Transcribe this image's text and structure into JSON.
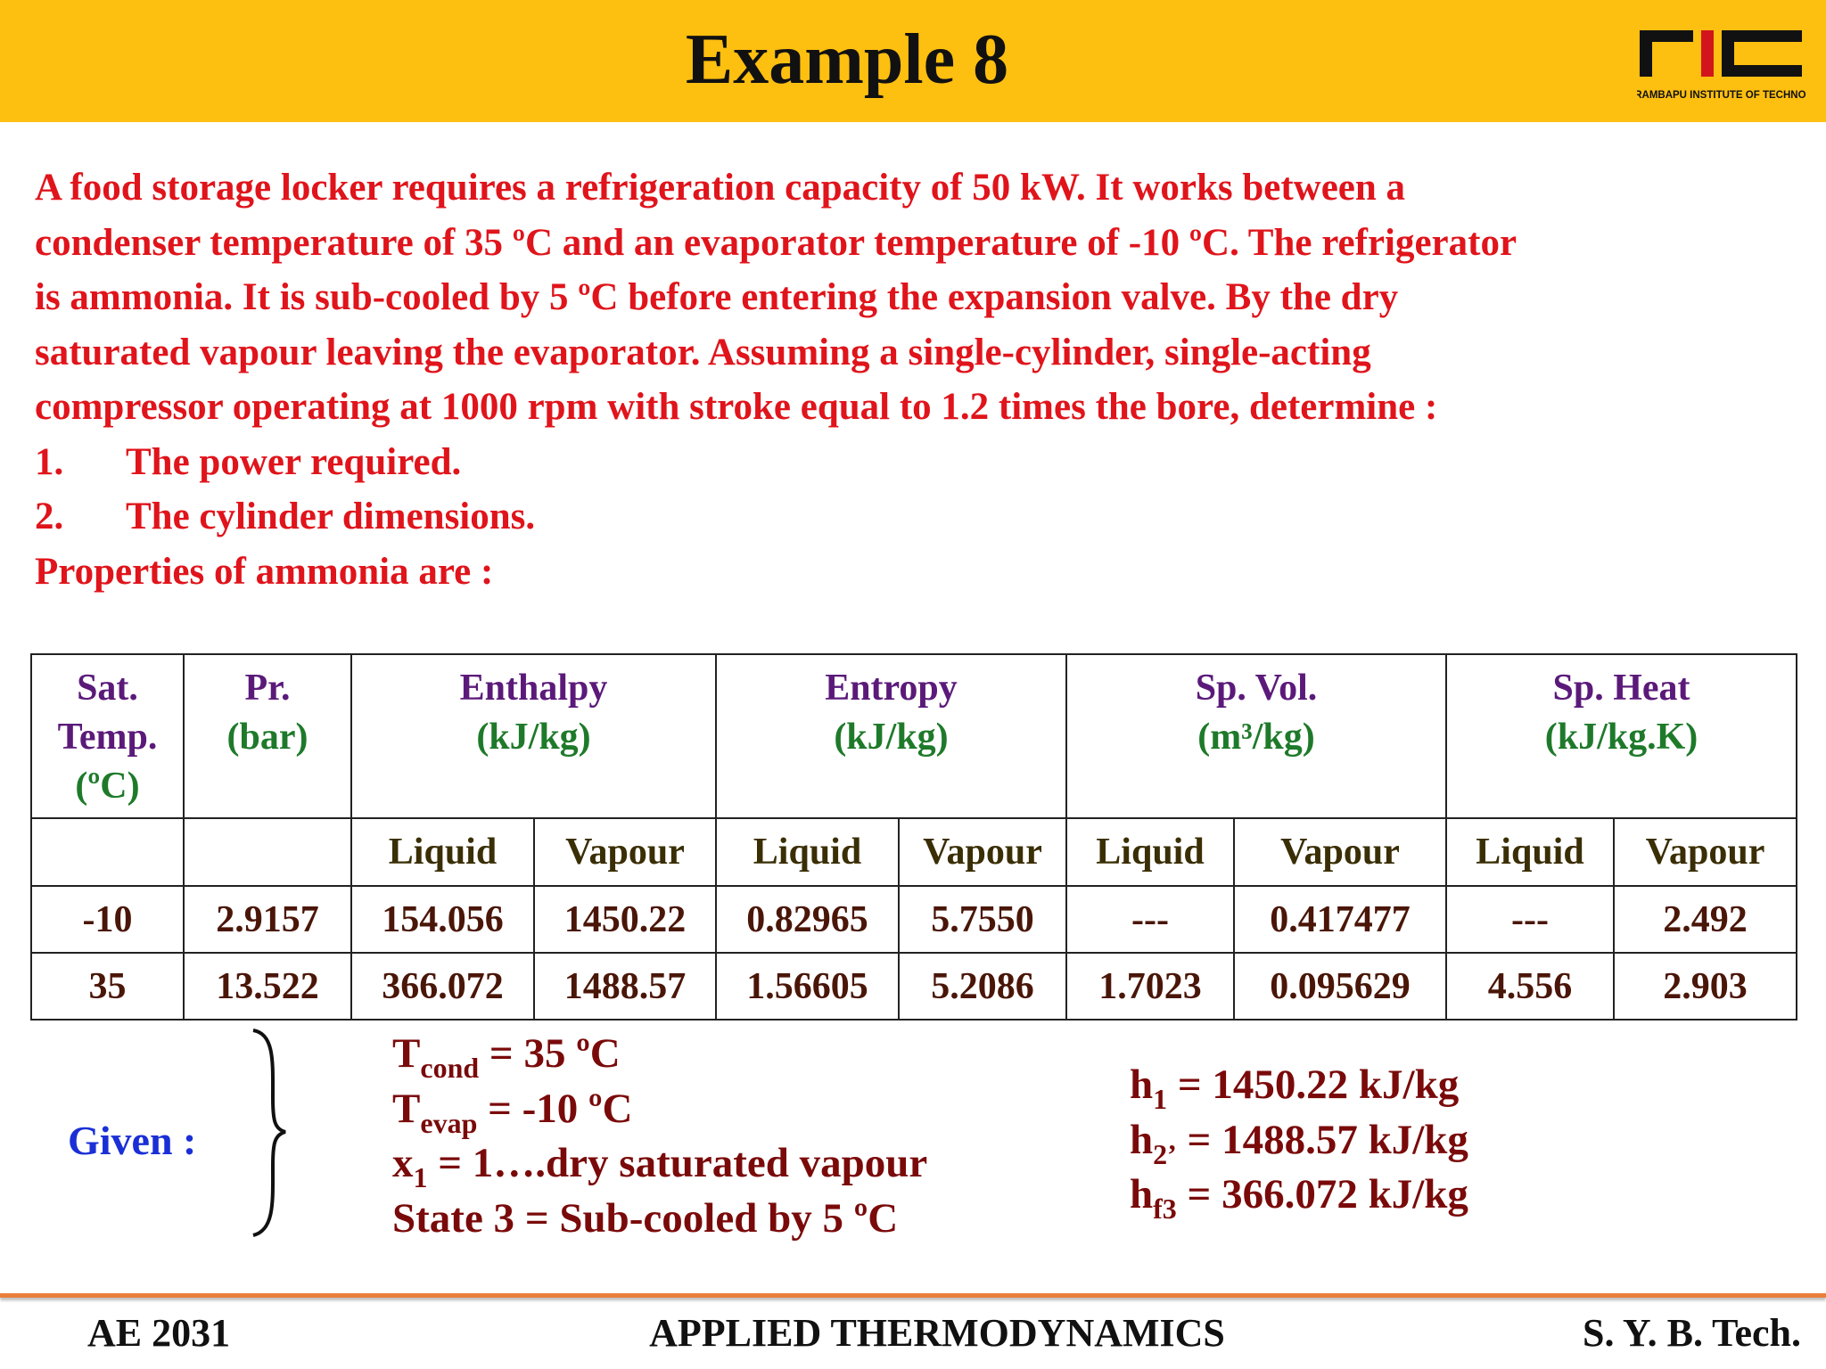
{
  "header": {
    "title": "Example 8",
    "logo_text": "RAJARAMBAPU INSTITUTE OF TECHNOLOGY"
  },
  "problem": {
    "lines": [
      "A food storage locker requires a refrigeration capacity of 50 kW. It works between a",
      "condenser temperature of 35 ºC and an evaporator temperature of -10 ºC. The refrigerator",
      "is ammonia. It is sub-cooled by 5 ºC before entering the expansion valve. By the dry",
      "saturated vapour leaving the evaporator. Assuming a single-cylinder, single-acting",
      "compressor operating at 1000 rpm with stroke equal to 1.2 times the bore, determine :"
    ],
    "items": [
      {
        "number": "1.",
        "text": "The power required."
      },
      {
        "number": "2.",
        "text": "The cylinder dimensions."
      }
    ],
    "closing": "Properties of ammonia are :"
  },
  "table": {
    "groups": [
      {
        "title": "Sat. Temp.",
        "unit": "(ºC)"
      },
      {
        "title": "Pr.",
        "unit": "(bar)"
      },
      {
        "title": "Enthalpy",
        "unit": "(kJ/kg)"
      },
      {
        "title": "Entropy",
        "unit": "(kJ/kg)"
      },
      {
        "title": "Sp. Vol.",
        "unit": "(m³/kg)"
      },
      {
        "title": "Sp. Heat",
        "unit": "(kJ/kg.K)"
      }
    ],
    "subheaders": [
      "Liquid",
      "Vapour",
      "Liquid",
      "Vapour",
      "Liquid",
      "Vapour",
      "Liquid",
      "Vapour"
    ],
    "rows": [
      [
        "-10",
        "2.9157",
        "154.056",
        "1450.22",
        "0.82965",
        "5.7550",
        "---",
        "0.417477",
        "---",
        "2.492"
      ],
      [
        "35",
        "13.522",
        "366.072",
        "1488.57",
        "1.56605",
        "5.2086",
        "1.7023",
        "0.095629",
        "4.556",
        "2.903"
      ]
    ]
  },
  "given": {
    "label": "Given :",
    "lines": [
      {
        "symbol": "T",
        "sub": "cond",
        "rest": "= 35 ºC"
      },
      {
        "symbol": "T",
        "sub": "evap",
        "rest": "= -10 ºC"
      },
      {
        "symbol": "x",
        "sub": "1",
        "rest": "= 1….dry saturated vapour"
      },
      {
        "symbol": "State 3",
        "sub": null,
        "rest": "= Sub-cooled by 5 ºC"
      }
    ],
    "results": [
      {
        "symbol": "h",
        "sub": "1",
        "rest": "= 1450.22 kJ/kg"
      },
      {
        "symbol": "h",
        "sub": "2’",
        "rest": "= 1488.57 kJ/kg"
      },
      {
        "symbol": "h",
        "sub": "f3",
        "rest": "= 366.072 kJ/kg"
      }
    ]
  },
  "footer": {
    "left": "AE 2031",
    "center": "APPLIED THERMODYNAMICS",
    "right": "S. Y. B. Tech."
  }
}
